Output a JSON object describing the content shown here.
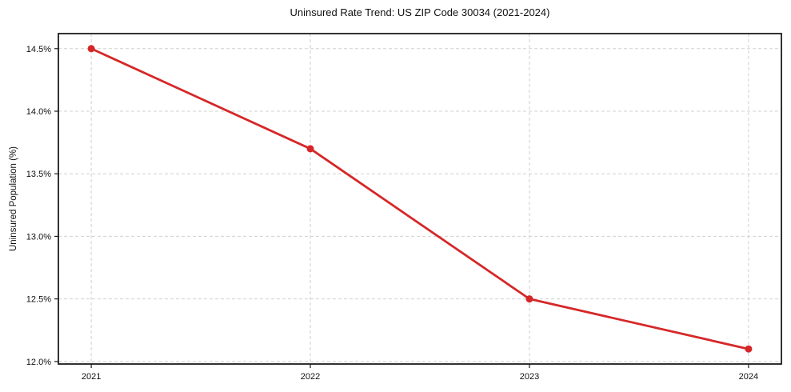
{
  "chart_data": {
    "type": "line",
    "title": "Uninsured Rate Trend: US ZIP Code 30034 (2021-2024)",
    "xlabel": "",
    "ylabel": "Uninsured Population (%)",
    "x": [
      2021,
      2022,
      2023,
      2024
    ],
    "series": [
      {
        "values": [
          14.5,
          13.7,
          12.5,
          12.1
        ]
      }
    ],
    "xticks": {
      "values": [
        2021,
        2022,
        2023,
        2024
      ],
      "labels": [
        "2021",
        "2022",
        "2023",
        "2024"
      ]
    },
    "yticks": {
      "values": [
        12.0,
        12.5,
        13.0,
        13.5,
        14.0,
        14.5
      ],
      "labels": [
        "12.0%",
        "12.5%",
        "13.0%",
        "13.5%",
        "14.0%",
        "14.5%"
      ]
    },
    "xlim": [
      2020.85,
      2024.15
    ],
    "ylim": [
      11.98,
      14.62
    ],
    "grid": true,
    "legend": "none",
    "style": {
      "line_color": "#d62728",
      "marker": "circle",
      "marker_color": "#d62728",
      "marker_radius": 4.5,
      "line_width": 2.8,
      "grid_color": "#d0d0d0",
      "grid_dash": "4 3",
      "spine_color": "#1c1c1c",
      "tick_color": "#1c1c1c",
      "text_color": "#111111",
      "background": "#ffffff"
    }
  }
}
